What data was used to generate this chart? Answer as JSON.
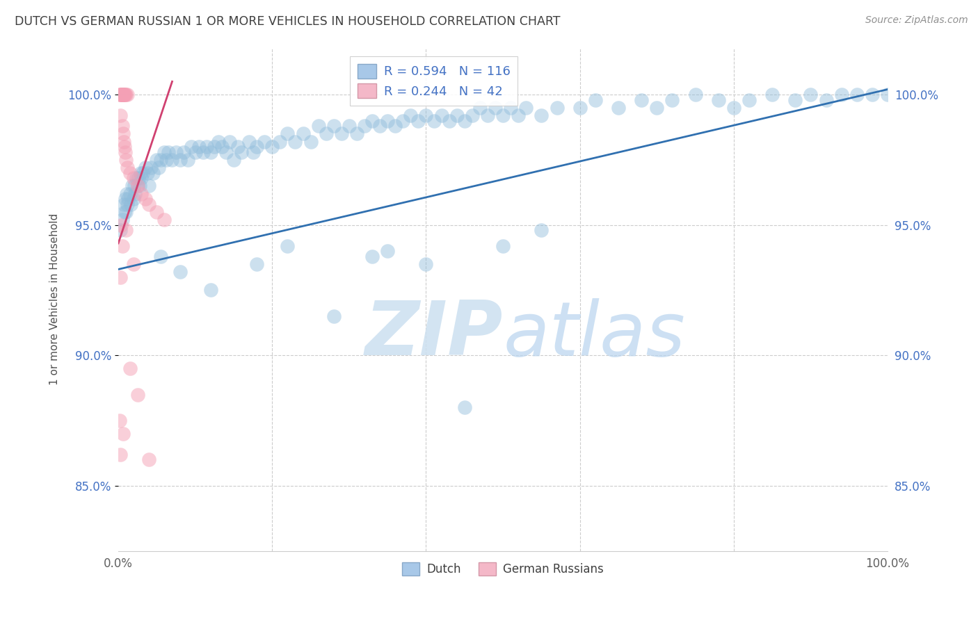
{
  "title": "DUTCH VS GERMAN RUSSIAN 1 OR MORE VEHICLES IN HOUSEHOLD CORRELATION CHART",
  "source": "Source: ZipAtlas.com",
  "ylabel": "1 or more Vehicles in Household",
  "yticks": [
    85.0,
    90.0,
    95.0,
    100.0
  ],
  "ytick_labels": [
    "85.0%",
    "90.0%",
    "95.0%",
    "100.0%"
  ],
  "xmin": 0.0,
  "xmax": 100.0,
  "ymin": 82.5,
  "ymax": 101.8,
  "blue_R": 0.594,
  "blue_N": 116,
  "pink_R": 0.244,
  "pink_N": 42,
  "blue_color": "#8fbcdb",
  "pink_color": "#f4a0b5",
  "title_color": "#404040",
  "source_color": "#909090",
  "watermark_color": "#cce0f0",
  "blue_line_color": "#3070b0",
  "pink_line_color": "#d04070",
  "blue_line": [
    [
      0.0,
      93.3
    ],
    [
      100.0,
      100.2
    ]
  ],
  "pink_line": [
    [
      0.0,
      94.3
    ],
    [
      7.0,
      100.5
    ]
  ],
  "blue_scatter": [
    [
      0.3,
      94.8
    ],
    [
      0.5,
      95.2
    ],
    [
      0.7,
      95.8
    ],
    [
      0.8,
      95.5
    ],
    [
      0.9,
      96.0
    ],
    [
      1.0,
      95.5
    ],
    [
      1.1,
      96.2
    ],
    [
      1.2,
      95.8
    ],
    [
      1.3,
      96.0
    ],
    [
      1.5,
      96.2
    ],
    [
      1.6,
      95.8
    ],
    [
      1.8,
      96.5
    ],
    [
      2.0,
      96.0
    ],
    [
      2.1,
      96.5
    ],
    [
      2.2,
      96.2
    ],
    [
      2.3,
      96.8
    ],
    [
      2.5,
      96.5
    ],
    [
      2.6,
      96.8
    ],
    [
      2.8,
      96.5
    ],
    [
      2.9,
      97.0
    ],
    [
      3.0,
      96.8
    ],
    [
      3.2,
      97.0
    ],
    [
      3.5,
      97.2
    ],
    [
      3.8,
      97.0
    ],
    [
      4.0,
      96.5
    ],
    [
      4.2,
      97.2
    ],
    [
      4.5,
      97.0
    ],
    [
      5.0,
      97.5
    ],
    [
      5.2,
      97.2
    ],
    [
      5.5,
      97.5
    ],
    [
      6.0,
      97.8
    ],
    [
      6.2,
      97.5
    ],
    [
      6.5,
      97.8
    ],
    [
      7.0,
      97.5
    ],
    [
      7.5,
      97.8
    ],
    [
      8.0,
      97.5
    ],
    [
      8.5,
      97.8
    ],
    [
      9.0,
      97.5
    ],
    [
      9.5,
      98.0
    ],
    [
      10.0,
      97.8
    ],
    [
      10.5,
      98.0
    ],
    [
      11.0,
      97.8
    ],
    [
      11.5,
      98.0
    ],
    [
      12.0,
      97.8
    ],
    [
      12.5,
      98.0
    ],
    [
      13.0,
      98.2
    ],
    [
      13.5,
      98.0
    ],
    [
      14.0,
      97.8
    ],
    [
      14.5,
      98.2
    ],
    [
      15.0,
      97.5
    ],
    [
      15.5,
      98.0
    ],
    [
      16.0,
      97.8
    ],
    [
      17.0,
      98.2
    ],
    [
      17.5,
      97.8
    ],
    [
      18.0,
      98.0
    ],
    [
      19.0,
      98.2
    ],
    [
      20.0,
      98.0
    ],
    [
      21.0,
      98.2
    ],
    [
      22.0,
      98.5
    ],
    [
      23.0,
      98.2
    ],
    [
      24.0,
      98.5
    ],
    [
      25.0,
      98.2
    ],
    [
      26.0,
      98.8
    ],
    [
      27.0,
      98.5
    ],
    [
      28.0,
      98.8
    ],
    [
      29.0,
      98.5
    ],
    [
      30.0,
      98.8
    ],
    [
      31.0,
      98.5
    ],
    [
      32.0,
      98.8
    ],
    [
      33.0,
      99.0
    ],
    [
      34.0,
      98.8
    ],
    [
      35.0,
      99.0
    ],
    [
      36.0,
      98.8
    ],
    [
      37.0,
      99.0
    ],
    [
      38.0,
      99.2
    ],
    [
      39.0,
      99.0
    ],
    [
      40.0,
      99.2
    ],
    [
      41.0,
      99.0
    ],
    [
      42.0,
      99.2
    ],
    [
      43.0,
      99.0
    ],
    [
      44.0,
      99.2
    ],
    [
      45.0,
      99.0
    ],
    [
      46.0,
      99.2
    ],
    [
      47.0,
      99.5
    ],
    [
      48.0,
      99.2
    ],
    [
      49.0,
      99.5
    ],
    [
      50.0,
      99.2
    ],
    [
      51.0,
      99.5
    ],
    [
      52.0,
      99.2
    ],
    [
      53.0,
      99.5
    ],
    [
      55.0,
      99.2
    ],
    [
      57.0,
      99.5
    ],
    [
      60.0,
      99.5
    ],
    [
      62.0,
      99.8
    ],
    [
      65.0,
      99.5
    ],
    [
      68.0,
      99.8
    ],
    [
      70.0,
      99.5
    ],
    [
      72.0,
      99.8
    ],
    [
      75.0,
      100.0
    ],
    [
      78.0,
      99.8
    ],
    [
      80.0,
      99.5
    ],
    [
      82.0,
      99.8
    ],
    [
      85.0,
      100.0
    ],
    [
      88.0,
      99.8
    ],
    [
      90.0,
      100.0
    ],
    [
      92.0,
      99.8
    ],
    [
      94.0,
      100.0
    ],
    [
      96.0,
      100.0
    ],
    [
      98.0,
      100.0
    ],
    [
      100.0,
      100.0
    ],
    [
      5.5,
      93.8
    ],
    [
      8.0,
      93.2
    ],
    [
      12.0,
      92.5
    ],
    [
      18.0,
      93.5
    ],
    [
      22.0,
      94.2
    ],
    [
      28.0,
      91.5
    ],
    [
      33.0,
      93.8
    ],
    [
      35.0,
      94.0
    ],
    [
      40.0,
      93.5
    ],
    [
      45.0,
      88.0
    ],
    [
      50.0,
      94.2
    ],
    [
      55.0,
      94.8
    ]
  ],
  "pink_scatter": [
    [
      0.2,
      100.0
    ],
    [
      0.3,
      100.0
    ],
    [
      0.35,
      100.0
    ],
    [
      0.4,
      100.0
    ],
    [
      0.45,
      100.0
    ],
    [
      0.5,
      100.0
    ],
    [
      0.55,
      100.0
    ],
    [
      0.6,
      100.0
    ],
    [
      0.65,
      100.0
    ],
    [
      0.7,
      100.0
    ],
    [
      0.75,
      100.0
    ],
    [
      0.8,
      100.0
    ],
    [
      0.9,
      100.0
    ],
    [
      1.0,
      100.0
    ],
    [
      1.2,
      100.0
    ],
    [
      0.3,
      99.2
    ],
    [
      0.5,
      98.8
    ],
    [
      0.6,
      98.5
    ],
    [
      0.7,
      98.2
    ],
    [
      0.8,
      98.0
    ],
    [
      0.9,
      97.8
    ],
    [
      1.0,
      97.5
    ],
    [
      1.2,
      97.2
    ],
    [
      1.5,
      97.0
    ],
    [
      2.0,
      96.8
    ],
    [
      2.5,
      96.5
    ],
    [
      3.0,
      96.2
    ],
    [
      3.5,
      96.0
    ],
    [
      4.0,
      95.8
    ],
    [
      5.0,
      95.5
    ],
    [
      6.0,
      95.2
    ],
    [
      0.4,
      95.0
    ],
    [
      1.0,
      94.8
    ],
    [
      0.5,
      94.2
    ],
    [
      2.0,
      93.5
    ],
    [
      0.3,
      93.0
    ],
    [
      1.5,
      89.5
    ],
    [
      2.5,
      88.5
    ],
    [
      0.2,
      87.5
    ],
    [
      0.6,
      87.0
    ],
    [
      0.3,
      86.2
    ],
    [
      4.0,
      86.0
    ]
  ]
}
